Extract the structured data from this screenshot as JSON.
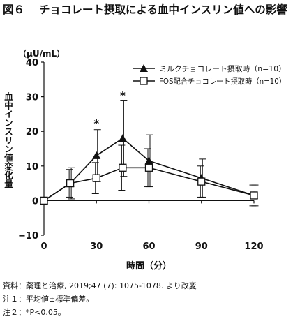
{
  "figure": {
    "number": "図６",
    "title": "チョコレート摂取による血中インスリン値への影響"
  },
  "chart_data": {
    "type": "line",
    "ylabel_unit": "（μU/mL）",
    "ylabel": "血中インスリン値変化量",
    "xlabel": "時間（分）",
    "xlim": [
      0,
      120
    ],
    "ylim": [
      -10,
      40
    ],
    "x_ticks": [
      0,
      30,
      60,
      90,
      120
    ],
    "y_ticks": [
      -10,
      0,
      10,
      20,
      30,
      40
    ],
    "legend_position": "top-right",
    "series": [
      {
        "name": "ミルクチョコレート摂取時（n=10）",
        "marker": "filled-triangle",
        "color": "#111111",
        "x": [
          0,
          15,
          30,
          45,
          60,
          90,
          120
        ],
        "y": [
          0,
          5.0,
          13.0,
          18.0,
          11.5,
          6.5,
          1.5
        ],
        "err": [
          0,
          4.5,
          7.5,
          11.0,
          7.5,
          5.5,
          3.0
        ]
      },
      {
        "name": "FOS配合チョコレート摂取時（n=10）",
        "marker": "open-square",
        "color": "#111111",
        "x": [
          0,
          15,
          30,
          45,
          60,
          90,
          120
        ],
        "y": [
          0,
          5.0,
          6.5,
          9.5,
          9.5,
          5.5,
          1.5
        ],
        "err": [
          0,
          4.0,
          4.5,
          6.5,
          5.5,
          4.5,
          3.0
        ]
      }
    ],
    "annotations": [
      {
        "x": 30,
        "y": 22.5,
        "text": "*"
      },
      {
        "x": 45,
        "y": 30.5,
        "text": "*"
      }
    ]
  },
  "notes": [
    "資料：薬理と治療, 2019;47 (7): 1075-1078. より改変",
    "注１：平均値±標準偏差。",
    "注２：*P<0.05。"
  ]
}
